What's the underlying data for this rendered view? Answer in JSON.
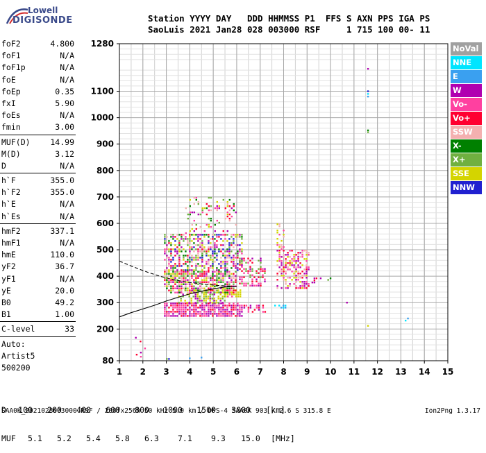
{
  "logo": {
    "line1": "Lowell",
    "line2": "DIGISONDE"
  },
  "header": {
    "line1": "Station YYYY DAY   DDD HHMMSS P1  FFS S AXN PPS IGA PS",
    "line2": "SaoLuis 2021 Jan28 028 003000 RSF     1 715 100 00- 11"
  },
  "parameters": [
    {
      "name": "foF2",
      "value": "4.800"
    },
    {
      "name": "foF1",
      "value": "N/A"
    },
    {
      "name": "foF1p",
      "value": "N/A"
    },
    {
      "name": "foE",
      "value": "N/A"
    },
    {
      "name": "foEp",
      "value": "0.35"
    },
    {
      "name": "fxI",
      "value": "5.90"
    },
    {
      "name": "foEs",
      "value": "N/A"
    },
    {
      "name": "fmin",
      "value": "3.00"
    },
    {
      "sep": true
    },
    {
      "name": "MUF(D)",
      "value": "14.99"
    },
    {
      "name": "M(D)",
      "value": "3.12"
    },
    {
      "name": "D",
      "value": "N/A"
    },
    {
      "sep": true
    },
    {
      "name": "h`F",
      "value": "355.0"
    },
    {
      "name": "h`F2",
      "value": "355.0"
    },
    {
      "name": "h`E",
      "value": "N/A"
    },
    {
      "name": "h`Es",
      "value": "N/A"
    },
    {
      "sep": true
    },
    {
      "name": "hmF2",
      "value": "337.1"
    },
    {
      "name": "hmF1",
      "value": "N/A"
    },
    {
      "name": "hmE",
      "value": "110.0"
    },
    {
      "name": "yF2",
      "value": "36.7"
    },
    {
      "name": "yF1",
      "value": "N/A"
    },
    {
      "name": "yE",
      "value": "20.0"
    },
    {
      "name": "B0",
      "value": "49.2"
    },
    {
      "name": "B1",
      "value": "1.00"
    },
    {
      "sep": true
    },
    {
      "name": "C-level",
      "value": "33"
    },
    {
      "sep": true
    },
    {
      "text": "Auto:"
    },
    {
      "text": "Artist5"
    },
    {
      "text": "500200"
    }
  ],
  "legend": [
    {
      "label": "NoVal",
      "color": "#a0a0a0"
    },
    {
      "label": "NNE",
      "color": "#00e5ff"
    },
    {
      "label": "E",
      "color": "#3aa0f0"
    },
    {
      "label": "W",
      "color": "#b000b0"
    },
    {
      "label": "Vo-",
      "color": "#ff40a0"
    },
    {
      "label": "Vo+",
      "color": "#ff0030"
    },
    {
      "label": "SSW",
      "color": "#f4b0b0"
    },
    {
      "label": "X-",
      "color": "#008000"
    },
    {
      "label": "X+",
      "color": "#70b040"
    },
    {
      "label": "SSE",
      "color": "#d4d400"
    },
    {
      "label": "NNW",
      "color": "#2020d0"
    }
  ],
  "muf_table": {
    "d_label": "D",
    "muf_label": "MUF",
    "distances": [
      "100",
      "200",
      "400",
      "600",
      "800",
      "1000",
      "1500",
      "3000",
      "[km]"
    ],
    "mufs": [
      "5.1",
      "5.2",
      "5.4",
      "5.8",
      "6.3",
      "7.1",
      "9.3",
      "15.0",
      "[MHz]"
    ]
  },
  "footer": "SAA0K_2021028003000.RSF / 280fx256h 50 kHz 5.0 km / DPS-4 SAA0K 903 / 2.6 S 315.8 E",
  "version": "Ion2Png 1.3.17",
  "chart_data": {
    "type": "scatter",
    "title": "",
    "xlabel": "",
    "ylabel": "",
    "xlim": [
      1,
      15
    ],
    "ylim": [
      80,
      1280
    ],
    "x_ticks": [
      1,
      2,
      3,
      4,
      5,
      6,
      7,
      8,
      9,
      10,
      11,
      12,
      13,
      14,
      15
    ],
    "y_ticks": [
      80,
      200,
      300,
      400,
      500,
      600,
      700,
      800,
      900,
      1000,
      1100,
      1280
    ],
    "grid": true,
    "legend_position": "right",
    "ionogram_blocks": [
      {
        "xmin": 2.9,
        "xmax": 6.2,
        "ymin": 245,
        "ymax": 300,
        "density": 0.8,
        "colors": [
          "#b000b0",
          "#ff40a0",
          "#ff0030",
          "#b000b0",
          "#ff40a0"
        ]
      },
      {
        "xmin": 6.2,
        "xmax": 7.2,
        "ymin": 268,
        "ymax": 292,
        "density": 0.35,
        "colors": [
          "#b000b0",
          "#ff40a0",
          "#ff0030"
        ]
      },
      {
        "xmin": 7.6,
        "xmax": 8.3,
        "ymin": 280,
        "ymax": 292,
        "density": 0.4,
        "colors": [
          "#3aa0f0",
          "#00e5ff"
        ]
      },
      {
        "xmin": 3.5,
        "xmax": 5.5,
        "ymin": 300,
        "ymax": 350,
        "density": 0.55,
        "colors": [
          "#d4d400",
          "#d4d400",
          "#70b040",
          "#b000b0"
        ]
      },
      {
        "xmin": 5.5,
        "xmax": 6.2,
        "ymin": 320,
        "ymax": 350,
        "density": 0.8,
        "colors": [
          "#d4d400",
          "#d4d400",
          "#ff40a0"
        ]
      },
      {
        "xmin": 2.9,
        "xmax": 6.0,
        "ymin": 340,
        "ymax": 420,
        "density": 0.75,
        "colors": [
          "#ff0030",
          "#ff40a0",
          "#b000b0",
          "#d4d400",
          "#008000",
          "#70b040",
          "#f4b0b0"
        ]
      },
      {
        "xmin": 2.9,
        "xmax": 6.2,
        "ymin": 420,
        "ymax": 560,
        "density": 0.55,
        "colors": [
          "#ff0030",
          "#ff40a0",
          "#b000b0",
          "#008000",
          "#70b040",
          "#d4d400",
          "#f4b0b0",
          "#2020d0"
        ]
      },
      {
        "xmin": 3.8,
        "xmax": 6.0,
        "ymin": 560,
        "ymax": 700,
        "density": 0.18,
        "colors": [
          "#ff0030",
          "#b000b0",
          "#008000",
          "#70b040",
          "#ff40a0",
          "#d4d400",
          "#f4b0b0"
        ]
      },
      {
        "xmin": 6.1,
        "xmax": 7.2,
        "ymin": 360,
        "ymax": 470,
        "density": 0.45,
        "colors": [
          "#ff0030",
          "#ff40a0",
          "#b000b0",
          "#70b040"
        ]
      },
      {
        "xmin": 7.7,
        "xmax": 9.1,
        "ymin": 355,
        "ymax": 500,
        "density": 0.5,
        "colors": [
          "#ff0030",
          "#ff40a0",
          "#b000b0",
          "#d4d400",
          "#f4b0b0"
        ]
      },
      {
        "xmin": 7.7,
        "xmax": 8.0,
        "ymin": 500,
        "ymax": 600,
        "density": 0.3,
        "colors": [
          "#d4d400",
          "#ff40a0",
          "#f4b0b0"
        ]
      },
      {
        "xmin": 9.1,
        "xmax": 9.6,
        "ymin": 375,
        "ymax": 395,
        "density": 0.4,
        "colors": [
          "#b000b0",
          "#ff0030"
        ]
      },
      {
        "xmin": 1.7,
        "xmax": 2.2,
        "ymin": 85,
        "ymax": 130,
        "density": 0.25,
        "colors": [
          "#ff40a0",
          "#b000b0",
          "#ff0030",
          "#3aa0f0"
        ]
      },
      {
        "xmin": 2.9,
        "xmax": 3.3,
        "ymin": 83,
        "ymax": 90,
        "density": 0.5,
        "colors": [
          "#008000",
          "#2020d0",
          "#70b040"
        ]
      }
    ],
    "isolated_points": [
      {
        "x": 11.6,
        "y": 1185,
        "color": "#b000b0"
      },
      {
        "x": 11.6,
        "y": 1100,
        "color": "#2020d0"
      },
      {
        "x": 11.6,
        "y": 1090,
        "color": "#00e5ff"
      },
      {
        "x": 11.6,
        "y": 1080,
        "color": "#3aa0f0"
      },
      {
        "x": 11.6,
        "y": 952,
        "color": "#008000"
      },
      {
        "x": 11.6,
        "y": 945,
        "color": "#70b040"
      },
      {
        "x": 11.6,
        "y": 212,
        "color": "#d4d400"
      },
      {
        "x": 13.3,
        "y": 240,
        "color": "#3aa0f0"
      },
      {
        "x": 13.2,
        "y": 232,
        "color": "#00e5ff"
      },
      {
        "x": 10.7,
        "y": 300,
        "color": "#b000b0"
      },
      {
        "x": 10.0,
        "y": 392,
        "color": "#008000"
      },
      {
        "x": 9.9,
        "y": 386,
        "color": "#70b040"
      },
      {
        "x": 4.0,
        "y": 89,
        "color": "#3aa0f0"
      },
      {
        "x": 4.5,
        "y": 92,
        "color": "#3aa0f0"
      },
      {
        "x": 1.7,
        "y": 167,
        "color": "#b000b0"
      },
      {
        "x": 1.9,
        "y": 153,
        "color": "#ff0030"
      }
    ],
    "trace_dashed": [
      [
        1,
        457
      ],
      [
        1.6,
        435
      ],
      [
        2.2,
        415
      ],
      [
        2.8,
        398
      ],
      [
        3.4,
        385
      ],
      [
        4.0,
        376
      ],
      [
        4.6,
        370
      ],
      [
        5.2,
        365
      ],
      [
        5.8,
        362
      ]
    ],
    "trace_solid": [
      [
        1,
        246
      ],
      [
        1.5,
        262
      ],
      [
        2.0,
        276
      ],
      [
        2.5,
        290
      ],
      [
        3.0,
        306
      ],
      [
        3.5,
        320
      ],
      [
        4.0,
        333
      ],
      [
        4.5,
        343
      ],
      [
        5.0,
        352
      ],
      [
        5.5,
        359
      ],
      [
        6.0,
        362
      ]
    ]
  }
}
